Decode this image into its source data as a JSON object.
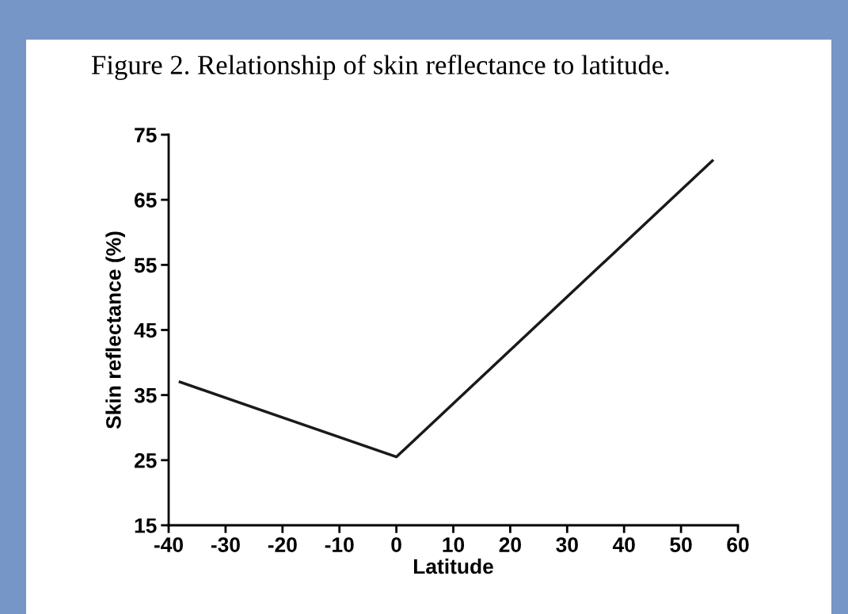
{
  "chart_data": {
    "type": "line",
    "title": "Figure 2. Relationship of skin reflectance to latitude.",
    "xlabel": "Latitude",
    "ylabel": "Skin reflectance (%)",
    "x": [
      -38,
      0,
      55.5
    ],
    "series": [
      {
        "color": "#1a1a1a",
        "values": [
          37,
          25.5,
          71
        ]
      }
    ],
    "xlim": [
      -40,
      60
    ],
    "xticks": [
      -40,
      -30,
      -20,
      -10,
      0,
      10,
      20,
      30,
      40,
      50,
      60
    ],
    "ylim": [
      15,
      75
    ],
    "yticks": [
      15,
      25,
      35,
      45,
      55,
      65,
      75
    ],
    "grid": false,
    "marker": "none",
    "line_style": "solid"
  }
}
